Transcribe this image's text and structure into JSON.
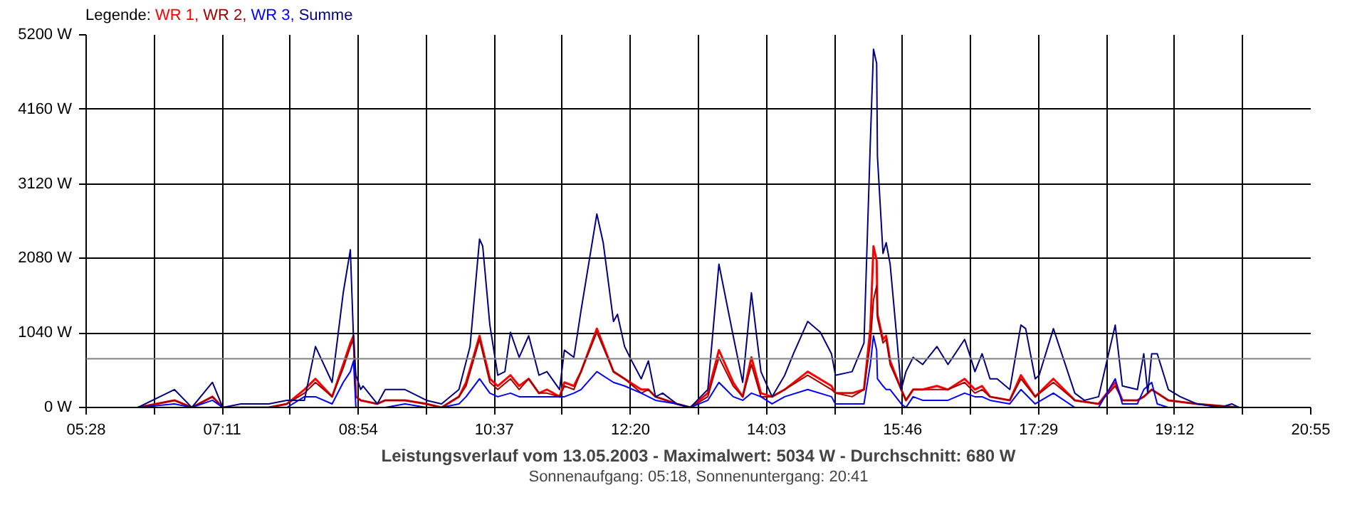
{
  "chart_data": {
    "type": "line",
    "title": "Leistungsverlauf vom 13.05.2003 - Maximalwert: 5034 W - Durchschnitt: 680 W",
    "subtitle": "Sonnenaufgang: 05:18, Sonnenuntergang: 20:41",
    "legend_title": "Legende:",
    "legend": "top left",
    "grid": true,
    "xlim": [
      5.4667,
      20.9167
    ],
    "ylim": [
      0,
      5200
    ],
    "xticks": [
      {
        "value": 5.4667,
        "label": "05:28"
      },
      {
        "value": 6.325,
        "label": null
      },
      {
        "value": 7.1833,
        "label": "07:11"
      },
      {
        "value": 8.0417,
        "label": null
      },
      {
        "value": 8.9,
        "label": "08:54"
      },
      {
        "value": 9.7583,
        "label": null
      },
      {
        "value": 10.6167,
        "label": "10:37"
      },
      {
        "value": 11.475,
        "label": null
      },
      {
        "value": 12.3333,
        "label": "12:20"
      },
      {
        "value": 13.1917,
        "label": null
      },
      {
        "value": 14.05,
        "label": "14:03"
      },
      {
        "value": 14.9083,
        "label": null
      },
      {
        "value": 15.7667,
        "label": "15:46"
      },
      {
        "value": 16.625,
        "label": null
      },
      {
        "value": 17.4833,
        "label": "17:29"
      },
      {
        "value": 18.3417,
        "label": null
      },
      {
        "value": 19.2,
        "label": "19:12"
      },
      {
        "value": 20.0583,
        "label": null
      },
      {
        "value": 20.9167,
        "label": "20:55"
      }
    ],
    "yticks": [
      {
        "value": 0,
        "label": "0 W"
      },
      {
        "value": 1040,
        "label": "1040 W"
      },
      {
        "value": 2080,
        "label": "2080 W"
      },
      {
        "value": 3120,
        "label": "3120 W"
      },
      {
        "value": 4160,
        "label": "4160 W"
      },
      {
        "value": 5200,
        "label": "5200 W"
      }
    ],
    "ref_lines": [
      {
        "axis": "y",
        "value": 680,
        "color": "#808080"
      }
    ],
    "x": [
      6.12,
      6.58,
      6.8,
      7.06,
      7.19,
      7.77,
      8.0,
      8.22,
      8.36,
      8.57,
      8.71,
      8.8,
      8.84,
      8.87,
      8.93,
      9.14,
      9.24,
      9.49,
      9.76,
      9.95,
      10.17,
      10.26,
      10.43,
      10.56,
      10.66,
      10.82,
      10.93,
      11.05,
      11.18,
      11.28,
      11.44,
      11.5,
      11.62,
      11.71,
      11.91,
      12.12,
      12.26,
      12.47,
      12.56,
      12.65,
      12.92,
      13.09,
      13.31,
      13.45,
      13.63,
      13.75,
      13.86,
      13.98,
      14.12,
      14.28,
      14.57,
      14.87,
      14.92,
      15.13,
      15.28,
      15.36,
      15.4,
      15.44,
      15.45,
      15.52,
      15.56,
      15.61,
      15.75,
      15.81,
      15.9,
      16.02,
      16.2,
      16.34,
      16.55,
      16.68,
      16.77,
      16.87,
      17.12,
      17.26,
      17.44,
      17.67,
      17.94,
      18.24,
      18.45,
      18.54,
      18.73,
      18.81,
      18.91,
      18.98,
      19.12,
      19.48,
      20.01
    ],
    "series": [
      {
        "name": "WR 1,",
        "color": "#ff0000",
        "values": [
          0,
          100,
          0,
          150,
          0,
          0,
          50,
          250,
          400,
          150,
          600,
          900,
          1000,
          150,
          100,
          50,
          100,
          100,
          50,
          0,
          150,
          350,
          1000,
          400,
          300,
          450,
          300,
          400,
          200,
          250,
          150,
          350,
          300,
          500,
          1100,
          500,
          400,
          250,
          250,
          150,
          50,
          0,
          200,
          800,
          350,
          150,
          700,
          200,
          150,
          250,
          500,
          300,
          200,
          200,
          250,
          1100,
          2250,
          2050,
          1300,
          950,
          1000,
          650,
          250,
          100,
          250,
          250,
          300,
          250,
          400,
          250,
          300,
          150,
          100,
          450,
          150,
          400,
          100,
          50,
          350,
          100,
          100,
          150,
          250,
          200,
          100,
          50,
          0
        ]
      },
      {
        "name": "WR 2,",
        "color": "#a00000",
        "values": [
          0,
          100,
          0,
          150,
          0,
          0,
          50,
          200,
          350,
          150,
          550,
          850,
          950,
          150,
          100,
          50,
          100,
          100,
          50,
          0,
          150,
          300,
          950,
          350,
          250,
          400,
          250,
          400,
          200,
          200,
          150,
          300,
          250,
          500,
          1050,
          500,
          400,
          200,
          250,
          150,
          50,
          0,
          150,
          700,
          300,
          150,
          600,
          150,
          150,
          250,
          450,
          250,
          200,
          150,
          250,
          900,
          1500,
          1700,
          1250,
          900,
          950,
          600,
          250,
          100,
          250,
          250,
          250,
          250,
          350,
          200,
          250,
          150,
          100,
          400,
          150,
          350,
          100,
          50,
          300,
          100,
          100,
          150,
          250,
          200,
          100,
          50,
          0
        ]
      },
      {
        "name": "WR 3,",
        "color": "#0000ff",
        "values": [
          0,
          50,
          0,
          100,
          0,
          0,
          0,
          150,
          150,
          50,
          350,
          500,
          650,
          0,
          0,
          0,
          0,
          50,
          0,
          0,
          50,
          150,
          400,
          200,
          150,
          200,
          150,
          150,
          150,
          150,
          150,
          150,
          200,
          250,
          500,
          350,
          300,
          200,
          150,
          100,
          50,
          0,
          100,
          350,
          150,
          100,
          200,
          150,
          50,
          150,
          250,
          150,
          50,
          50,
          50,
          600,
          1000,
          800,
          400,
          300,
          250,
          250,
          50,
          0,
          150,
          100,
          100,
          100,
          200,
          150,
          150,
          100,
          50,
          250,
          50,
          200,
          0,
          0,
          400,
          50,
          50,
          250,
          350,
          50,
          0,
          0,
          0
        ]
      },
      {
        "name": "Summe",
        "color": "#000080",
        "x": [
          6.12,
          6.58,
          6.8,
          7.06,
          7.19,
          7.42,
          7.77,
          8.0,
          8.22,
          8.36,
          8.57,
          8.71,
          8.8,
          8.84,
          8.87,
          8.93,
          8.96,
          9.14,
          9.24,
          9.49,
          9.76,
          9.95,
          10.17,
          10.31,
          10.43,
          10.47,
          10.56,
          10.66,
          10.75,
          10.82,
          10.93,
          11.05,
          11.18,
          11.28,
          11.44,
          11.5,
          11.62,
          11.71,
          11.91,
          11.99,
          12.12,
          12.17,
          12.26,
          12.35,
          12.47,
          12.56,
          12.65,
          12.74,
          12.92,
          13.09,
          13.22,
          13.31,
          13.45,
          13.63,
          13.75,
          13.86,
          13.98,
          14.12,
          14.28,
          14.39,
          14.57,
          14.73,
          14.87,
          14.92,
          15.13,
          15.28,
          15.36,
          15.4,
          15.44,
          15.45,
          15.52,
          15.56,
          15.61,
          15.7,
          15.75,
          15.81,
          15.9,
          16.02,
          16.2,
          16.34,
          16.55,
          16.61,
          16.68,
          16.77,
          16.87,
          16.96,
          17.12,
          17.26,
          17.32,
          17.44,
          17.49,
          17.67,
          17.94,
          18.06,
          18.24,
          18.45,
          18.54,
          18.73,
          18.81,
          18.86,
          18.91,
          18.98,
          19.12,
          19.27,
          19.48,
          19.78,
          19.92,
          20.01
        ],
        "values": [
          0,
          250,
          0,
          350,
          0,
          50,
          50,
          100,
          100,
          850,
          350,
          1600,
          2200,
          950,
          450,
          250,
          300,
          50,
          250,
          250,
          100,
          50,
          250,
          850,
          2350,
          2250,
          1150,
          450,
          500,
          1050,
          700,
          1000,
          450,
          500,
          250,
          800,
          700,
          1350,
          2700,
          2300,
          1200,
          1300,
          850,
          650,
          400,
          650,
          150,
          200,
          50,
          0,
          150,
          250,
          2000,
          1000,
          350,
          1600,
          500,
          150,
          450,
          750,
          1200,
          1050,
          750,
          450,
          500,
          900,
          3700,
          5000,
          4800,
          3500,
          2150,
          2300,
          2000,
          900,
          250,
          500,
          700,
          600,
          850,
          600,
          950,
          750,
          500,
          750,
          400,
          400,
          250,
          1150,
          1100,
          400,
          450,
          1100,
          200,
          100,
          150,
          1150,
          300,
          250,
          750,
          200,
          750,
          750,
          250,
          150,
          50,
          0,
          50,
          0
        ]
      }
    ]
  }
}
